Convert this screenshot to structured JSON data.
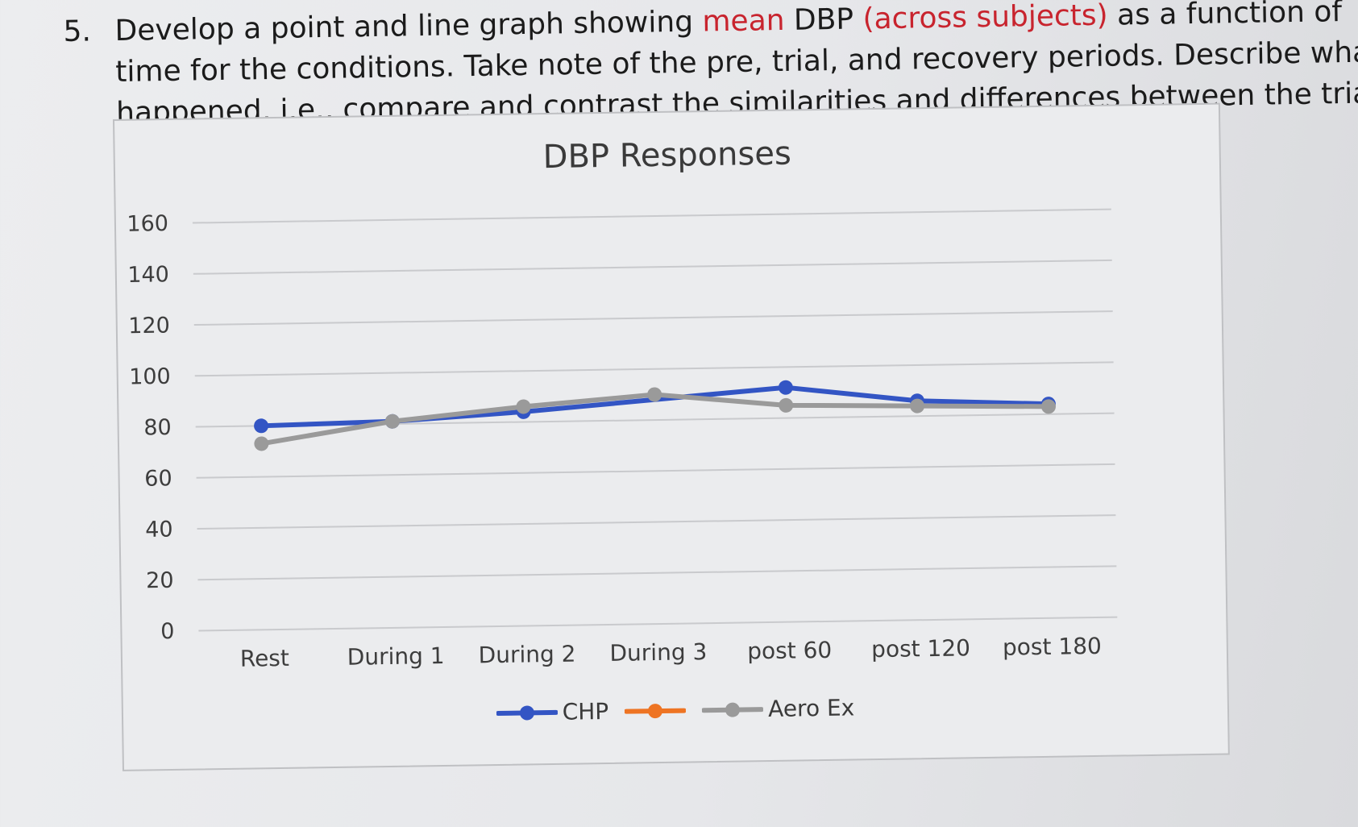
{
  "question": {
    "number": "5.",
    "line1_a": "Develop a point and line graph showing ",
    "line1_b": "mean",
    "line1_c": " DBP ",
    "line1_d": "(across subjects)",
    "line1_e": " as a function of",
    "line2": "time for the conditions.  Take note of the pre, trial, and recovery periods.  Describe what",
    "line3_a": "happened, i.e., ",
    "line3_b": "compare and contrast",
    "line3_c": " the similarities and differences between the trials."
  },
  "colors": {
    "question_highlight": "#c8242e"
  },
  "chart_data": {
    "type": "line",
    "title": "DBP Responses",
    "categories": [
      "Rest",
      "During 1",
      "During 2",
      "During 3",
      "post 60",
      "post 120",
      "post 180"
    ],
    "ylim": [
      0,
      160
    ],
    "yticks": [
      "0",
      "20",
      "40",
      "60",
      "80",
      "100",
      "120",
      "140",
      "160"
    ],
    "ytick_values": [
      0,
      20,
      40,
      60,
      80,
      100,
      120,
      140,
      160
    ],
    "grid": true,
    "legend_position": "bottom",
    "series": [
      {
        "name": "CHP",
        "color": "#3355c4",
        "values": [
          80,
          81,
          84,
          null,
          92,
          86,
          84
        ]
      },
      {
        "name": "",
        "color": "#ee7423",
        "values": [
          null,
          null,
          null,
          null,
          null,
          null,
          null
        ]
      },
      {
        "name": "Aero Ex",
        "color": "#9a9a9a",
        "values": [
          73,
          81,
          86,
          90,
          85,
          84,
          83
        ]
      }
    ]
  }
}
